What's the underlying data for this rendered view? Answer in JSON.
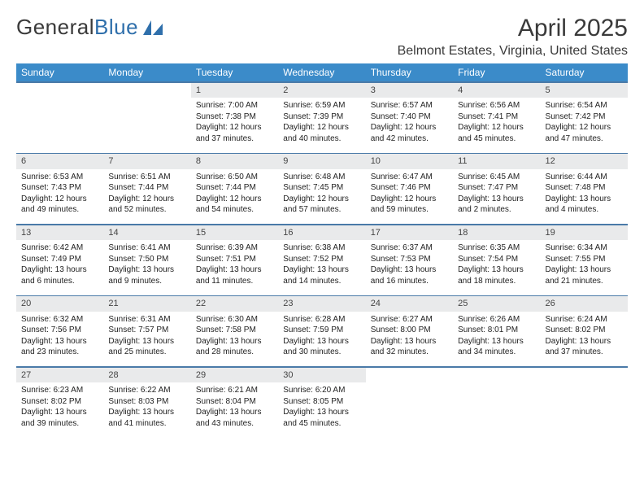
{
  "logo": {
    "text1": "General",
    "text2": "Blue"
  },
  "header": {
    "month_title": "April 2025",
    "location": "Belmont Estates, Virginia, United States"
  },
  "colors": {
    "header_bg": "#3b8bc9",
    "header_text": "#ffffff",
    "daynum_bg": "#e9eaeb",
    "divider": "#4a7aa8",
    "logo_blue": "#2f6fab",
    "text": "#222222",
    "page_bg": "#ffffff"
  },
  "typography": {
    "month_title_fontsize": 30,
    "location_fontsize": 16,
    "dayhead_fontsize": 12,
    "daynum_fontsize": 11,
    "body_fontsize": 10
  },
  "layout": {
    "columns": 7,
    "rows": 5,
    "start_day_index": 2
  },
  "day_headers": [
    "Sunday",
    "Monday",
    "Tuesday",
    "Wednesday",
    "Thursday",
    "Friday",
    "Saturday"
  ],
  "days": [
    {
      "n": 1,
      "sunrise": "7:00 AM",
      "sunset": "7:38 PM",
      "daylight": "12 hours and 37 minutes."
    },
    {
      "n": 2,
      "sunrise": "6:59 AM",
      "sunset": "7:39 PM",
      "daylight": "12 hours and 40 minutes."
    },
    {
      "n": 3,
      "sunrise": "6:57 AM",
      "sunset": "7:40 PM",
      "daylight": "12 hours and 42 minutes."
    },
    {
      "n": 4,
      "sunrise": "6:56 AM",
      "sunset": "7:41 PM",
      "daylight": "12 hours and 45 minutes."
    },
    {
      "n": 5,
      "sunrise": "6:54 AM",
      "sunset": "7:42 PM",
      "daylight": "12 hours and 47 minutes."
    },
    {
      "n": 6,
      "sunrise": "6:53 AM",
      "sunset": "7:43 PM",
      "daylight": "12 hours and 49 minutes."
    },
    {
      "n": 7,
      "sunrise": "6:51 AM",
      "sunset": "7:44 PM",
      "daylight": "12 hours and 52 minutes."
    },
    {
      "n": 8,
      "sunrise": "6:50 AM",
      "sunset": "7:44 PM",
      "daylight": "12 hours and 54 minutes."
    },
    {
      "n": 9,
      "sunrise": "6:48 AM",
      "sunset": "7:45 PM",
      "daylight": "12 hours and 57 minutes."
    },
    {
      "n": 10,
      "sunrise": "6:47 AM",
      "sunset": "7:46 PM",
      "daylight": "12 hours and 59 minutes."
    },
    {
      "n": 11,
      "sunrise": "6:45 AM",
      "sunset": "7:47 PM",
      "daylight": "13 hours and 2 minutes."
    },
    {
      "n": 12,
      "sunrise": "6:44 AM",
      "sunset": "7:48 PM",
      "daylight": "13 hours and 4 minutes."
    },
    {
      "n": 13,
      "sunrise": "6:42 AM",
      "sunset": "7:49 PM",
      "daylight": "13 hours and 6 minutes."
    },
    {
      "n": 14,
      "sunrise": "6:41 AM",
      "sunset": "7:50 PM",
      "daylight": "13 hours and 9 minutes."
    },
    {
      "n": 15,
      "sunrise": "6:39 AM",
      "sunset": "7:51 PM",
      "daylight": "13 hours and 11 minutes."
    },
    {
      "n": 16,
      "sunrise": "6:38 AM",
      "sunset": "7:52 PM",
      "daylight": "13 hours and 14 minutes."
    },
    {
      "n": 17,
      "sunrise": "6:37 AM",
      "sunset": "7:53 PM",
      "daylight": "13 hours and 16 minutes."
    },
    {
      "n": 18,
      "sunrise": "6:35 AM",
      "sunset": "7:54 PM",
      "daylight": "13 hours and 18 minutes."
    },
    {
      "n": 19,
      "sunrise": "6:34 AM",
      "sunset": "7:55 PM",
      "daylight": "13 hours and 21 minutes."
    },
    {
      "n": 20,
      "sunrise": "6:32 AM",
      "sunset": "7:56 PM",
      "daylight": "13 hours and 23 minutes."
    },
    {
      "n": 21,
      "sunrise": "6:31 AM",
      "sunset": "7:57 PM",
      "daylight": "13 hours and 25 minutes."
    },
    {
      "n": 22,
      "sunrise": "6:30 AM",
      "sunset": "7:58 PM",
      "daylight": "13 hours and 28 minutes."
    },
    {
      "n": 23,
      "sunrise": "6:28 AM",
      "sunset": "7:59 PM",
      "daylight": "13 hours and 30 minutes."
    },
    {
      "n": 24,
      "sunrise": "6:27 AM",
      "sunset": "8:00 PM",
      "daylight": "13 hours and 32 minutes."
    },
    {
      "n": 25,
      "sunrise": "6:26 AM",
      "sunset": "8:01 PM",
      "daylight": "13 hours and 34 minutes."
    },
    {
      "n": 26,
      "sunrise": "6:24 AM",
      "sunset": "8:02 PM",
      "daylight": "13 hours and 37 minutes."
    },
    {
      "n": 27,
      "sunrise": "6:23 AM",
      "sunset": "8:02 PM",
      "daylight": "13 hours and 39 minutes."
    },
    {
      "n": 28,
      "sunrise": "6:22 AM",
      "sunset": "8:03 PM",
      "daylight": "13 hours and 41 minutes."
    },
    {
      "n": 29,
      "sunrise": "6:21 AM",
      "sunset": "8:04 PM",
      "daylight": "13 hours and 43 minutes."
    },
    {
      "n": 30,
      "sunrise": "6:20 AM",
      "sunset": "8:05 PM",
      "daylight": "13 hours and 45 minutes."
    }
  ],
  "labels": {
    "sunrise_prefix": "Sunrise: ",
    "sunset_prefix": "Sunset: ",
    "daylight_prefix": "Daylight: "
  }
}
